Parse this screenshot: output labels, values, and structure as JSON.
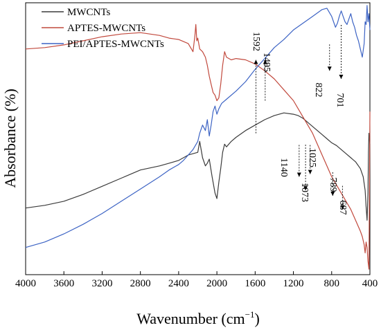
{
  "chart_data": {
    "type": "line",
    "title": "",
    "xlabel": "Wavenumber (cm",
    "xlabel_sup": "−1",
    "xlabel_close": ")",
    "ylabel": "Absorbance (%)",
    "xlim": [
      4000,
      400
    ],
    "ylim": [
      0,
      100
    ],
    "x_reversed": true,
    "y_ticks_shown": false,
    "grid": false,
    "legend": "top-left",
    "x_ticks": [
      "4000",
      "3600",
      "3200",
      "2800",
      "2400",
      "2000",
      "1600",
      "1200",
      "800",
      "400"
    ],
    "x_tick_values": [
      4000,
      3600,
      3200,
      2800,
      2400,
      2000,
      1600,
      1200,
      800,
      400
    ],
    "series": [
      {
        "name": "MWCNTs",
        "color": "#3a3a3a",
        "x": [
          4000,
          3800,
          3600,
          3400,
          3200,
          3000,
          2800,
          2600,
          2500,
          2400,
          2350,
          2300,
          2200,
          2180,
          2150,
          2120,
          2100,
          2080,
          2050,
          2020,
          2000,
          1980,
          1960,
          1940,
          1920,
          1900,
          1850,
          1800,
          1700,
          1600,
          1500,
          1400,
          1300,
          1200,
          1150,
          1100,
          1050,
          1000,
          950,
          900,
          850,
          800,
          750,
          700,
          650,
          600,
          550,
          500,
          470,
          450,
          440,
          430,
          420,
          415,
          410,
          405,
          400
        ],
        "y": [
          24.5,
          25.5,
          27,
          29.5,
          32.5,
          35.5,
          38.5,
          40,
          41,
          42,
          43,
          44,
          45,
          49,
          43,
          40,
          41,
          42.5,
          36,
          30,
          28,
          34,
          39,
          45,
          48,
          47,
          49,
          50.5,
          53,
          55,
          57,
          58.5,
          59.5,
          59,
          58.5,
          57.5,
          56,
          54.5,
          53,
          51.5,
          50,
          48.5,
          47.5,
          46,
          44.5,
          43,
          41.5,
          39,
          36,
          31,
          25,
          20,
          30,
          45,
          52,
          50,
          48
        ]
      },
      {
        "name": "APTES-MWCNTs",
        "color": "#c1483c",
        "x": [
          4000,
          3800,
          3600,
          3400,
          3200,
          3000,
          2800,
          2700,
          2600,
          2500,
          2400,
          2300,
          2250,
          2230,
          2220,
          2210,
          2200,
          2180,
          2150,
          2120,
          2100,
          2080,
          2060,
          2040,
          2020,
          2000,
          1980,
          1960,
          1940,
          1920,
          1900,
          1850,
          1800,
          1700,
          1600,
          1500,
          1400,
          1300,
          1200,
          1150,
          1100,
          1050,
          1000,
          950,
          900,
          850,
          800,
          750,
          700,
          650,
          600,
          550,
          500,
          480,
          460,
          450,
          440,
          430,
          420,
          410,
          405,
          400
        ],
        "y": [
          83,
          83.5,
          84.5,
          86,
          87.5,
          88.5,
          89,
          88.5,
          88,
          87,
          86.5,
          85,
          82,
          88,
          92,
          86,
          87,
          83,
          82,
          80,
          77,
          73,
          70,
          67,
          66,
          64,
          65,
          70,
          77,
          82,
          80,
          79,
          79.5,
          79,
          77.5,
          75,
          72,
          68,
          64,
          61,
          58,
          55,
          52,
          48,
          44,
          40,
          36,
          33,
          30,
          27,
          24,
          20,
          16,
          14,
          11,
          8,
          12,
          10,
          5,
          2,
          30,
          60
        ]
      },
      {
        "name": "PEI/APTES-MWCNTs",
        "color": "#3c63c4",
        "x": [
          4000,
          3800,
          3600,
          3400,
          3200,
          3000,
          2800,
          2600,
          2500,
          2400,
          2350,
          2300,
          2250,
          2200,
          2180,
          2150,
          2120,
          2100,
          2080,
          2060,
          2040,
          2020,
          2000,
          1980,
          1950,
          1900,
          1800,
          1700,
          1600,
          1500,
          1400,
          1300,
          1200,
          1100,
          1000,
          900,
          850,
          800,
          780,
          760,
          740,
          720,
          700,
          680,
          660,
          640,
          620,
          600,
          580,
          560,
          540,
          520,
          500,
          480,
          460,
          450,
          440,
          430,
          420,
          410,
          400
        ],
        "y": [
          10,
          12,
          15,
          18.5,
          22.5,
          27,
          31.5,
          36,
          38.5,
          40.5,
          42,
          44,
          46,
          49,
          52,
          55,
          53,
          57,
          51,
          55,
          60,
          62,
          59,
          61,
          63,
          64.5,
          67.5,
          71,
          75.5,
          79.5,
          83.5,
          86.5,
          90,
          92.5,
          95,
          97.5,
          98,
          95,
          93,
          91,
          92.5,
          95,
          97,
          95,
          93,
          92,
          94,
          96,
          93,
          91,
          88,
          86,
          83,
          80,
          85,
          93,
          92,
          99,
          93,
          96,
          90
        ]
      }
    ],
    "annotations": [
      {
        "label": "1592",
        "x": 1592,
        "direction": "up"
      },
      {
        "label": "1495",
        "x": 1495,
        "direction": "up"
      },
      {
        "label": "822",
        "x": 822,
        "direction": "down"
      },
      {
        "label": "701",
        "x": 701,
        "direction": "down"
      },
      {
        "label": "1140",
        "x": 1140,
        "direction": "down"
      },
      {
        "label": "1073",
        "x": 1073,
        "direction": "down"
      },
      {
        "label": "1025",
        "x": 1025,
        "direction": "down"
      },
      {
        "label": "789",
        "x": 789,
        "direction": "down"
      },
      {
        "label": "687",
        "x": 687,
        "direction": "down"
      }
    ]
  }
}
